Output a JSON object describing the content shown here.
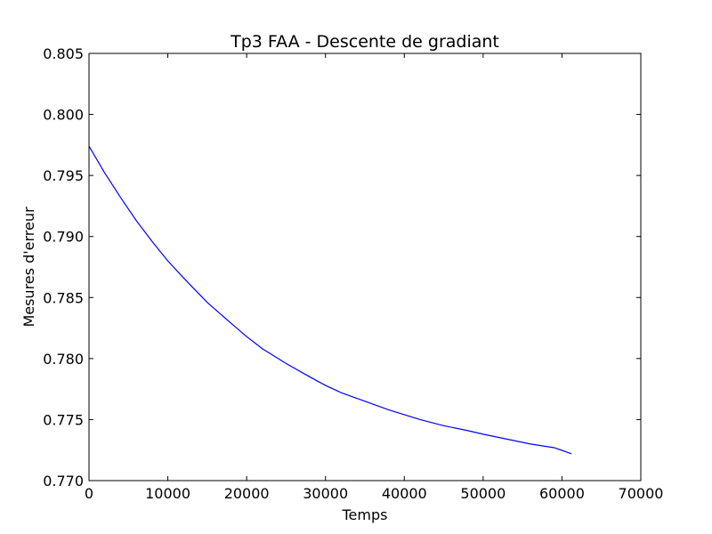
{
  "chart_data": {
    "type": "line",
    "title": "Tp3 FAA - Descente de gradiant",
    "xlabel": "Temps",
    "ylabel": "Mesures d'erreur",
    "xlim": [
      0,
      70000
    ],
    "ylim": [
      0.77,
      0.805
    ],
    "x_ticks": [
      "0",
      "10000",
      "20000",
      "30000",
      "40000",
      "50000",
      "60000",
      "70000"
    ],
    "y_ticks": [
      "0.770",
      "0.775",
      "0.780",
      "0.785",
      "0.790",
      "0.795",
      "0.800",
      "0.805"
    ],
    "grid": false,
    "legend": "none",
    "series": [
      {
        "color": "#0000ff",
        "x": [
          0,
          2000,
          4000,
          6000,
          8000,
          10000,
          12000,
          15000,
          18000,
          20000,
          22000,
          25000,
          28000,
          30000,
          32000,
          35000,
          38000,
          40000,
          42000,
          45000,
          48000,
          50000,
          53000,
          56000,
          59000,
          61200
        ],
        "y": [
          0.7974,
          0.7952,
          0.7932,
          0.7913,
          0.7896,
          0.788,
          0.7866,
          0.7846,
          0.7829,
          0.7818,
          0.7808,
          0.7796,
          0.7785,
          0.7778,
          0.7772,
          0.7765,
          0.7758,
          0.7754,
          0.775,
          0.7745,
          0.7741,
          0.7738,
          0.7734,
          0.773,
          0.7727,
          0.7722
        ]
      }
    ]
  }
}
